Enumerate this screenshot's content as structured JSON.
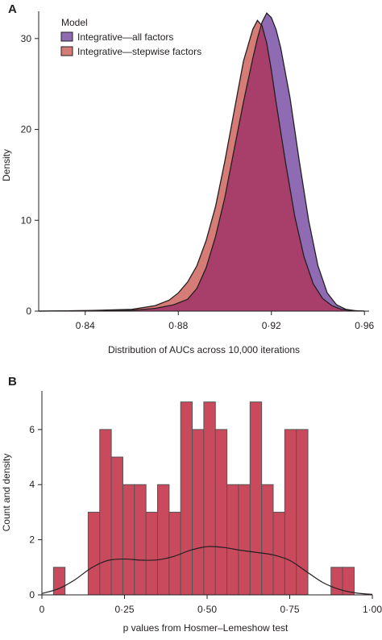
{
  "figure": {
    "panels": [
      "A",
      "B"
    ]
  },
  "colors": {
    "all_factors": "#8e6bb3",
    "stepwise_factors": "#d67c77",
    "overlap": "#a83e6a",
    "hist_fill": "#c9495d",
    "hist_stroke": "#555555",
    "line": "#231f20"
  },
  "chart_data": [
    {
      "type": "area",
      "panel": "A",
      "xlabel": "Distribution of AUCs across 10,000 iterations",
      "ylabel": "Density",
      "xlim": [
        0.82,
        0.962
      ],
      "ylim": [
        0,
        33
      ],
      "xticks": [
        0.84,
        0.88,
        0.92,
        0.96
      ],
      "xtick_labels": [
        "0·84",
        "0·88",
        "0·92",
        "0·96"
      ],
      "yticks": [
        0,
        10,
        20,
        30
      ],
      "ytick_labels": [
        "0",
        "10",
        "20",
        "30"
      ],
      "legend": {
        "title": "Model",
        "placement": "top-left"
      },
      "series": [
        {
          "name": "Integrative—all factors",
          "color": "#8e6bb3",
          "x": [
            0.82,
            0.84,
            0.86,
            0.87,
            0.878,
            0.884,
            0.888,
            0.892,
            0.896,
            0.9,
            0.904,
            0.908,
            0.912,
            0.914,
            0.916,
            0.918,
            0.92,
            0.922,
            0.924,
            0.928,
            0.932,
            0.936,
            0.94,
            0.944,
            0.948,
            0.952,
            0.956,
            0.96
          ],
          "y": [
            0,
            0.05,
            0.1,
            0.3,
            0.7,
            1.3,
            2.5,
            4.8,
            8.2,
            12.5,
            17.8,
            23.0,
            27.8,
            30.0,
            31.8,
            32.8,
            32.3,
            31.0,
            29.0,
            23.5,
            16.5,
            10.0,
            5.0,
            2.0,
            0.7,
            0.2,
            0.05,
            0
          ]
        },
        {
          "name": "Integrative—stepwise factors",
          "color": "#d67c77",
          "x": [
            0.82,
            0.84,
            0.86,
            0.87,
            0.876,
            0.88,
            0.884,
            0.888,
            0.892,
            0.896,
            0.9,
            0.904,
            0.908,
            0.912,
            0.914,
            0.916,
            0.918,
            0.92,
            0.922,
            0.926,
            0.93,
            0.934,
            0.938,
            0.942,
            0.946,
            0.95,
            0.955,
            0.96
          ],
          "y": [
            0,
            0.05,
            0.2,
            0.6,
            1.2,
            2.0,
            3.2,
            5.0,
            7.8,
            11.5,
            16.5,
            22.0,
            27.5,
            31.0,
            32.0,
            31.4,
            29.5,
            26.5,
            23.0,
            16.5,
            10.5,
            6.0,
            3.0,
            1.4,
            0.6,
            0.2,
            0.05,
            0
          ]
        }
      ]
    },
    {
      "type": "bar",
      "panel": "B",
      "xlabel": "p values from Hosmer–Lemeshow test",
      "ylabel": "Count and density",
      "xlim": [
        0,
        1.0
      ],
      "ylim": [
        0,
        7.4
      ],
      "xticks": [
        0,
        0.25,
        0.5,
        0.75,
        1.0
      ],
      "xtick_labels": [
        "0",
        "0·25",
        "0·50",
        "0·75",
        "1·00"
      ],
      "yticks": [
        0,
        2,
        4,
        6
      ],
      "ytick_labels": [
        "0",
        "2",
        "4",
        "6"
      ],
      "bin_width": 0.035,
      "bin_starts": [
        0.035,
        0.07,
        0.105,
        0.14,
        0.175,
        0.21,
        0.245,
        0.28,
        0.315,
        0.35,
        0.385,
        0.42,
        0.455,
        0.49,
        0.525,
        0.56,
        0.595,
        0.63,
        0.665,
        0.7,
        0.735,
        0.77,
        0.805,
        0.84,
        0.875,
        0.91
      ],
      "counts": [
        1,
        0,
        0,
        3,
        6,
        5,
        4,
        4,
        3,
        4,
        3,
        7,
        6,
        7,
        6,
        4,
        4,
        7,
        4,
        3,
        6,
        6,
        0,
        0,
        1,
        1
      ],
      "density": {
        "x": [
          0.0,
          0.05,
          0.1,
          0.15,
          0.2,
          0.25,
          0.3,
          0.35,
          0.4,
          0.45,
          0.5,
          0.55,
          0.6,
          0.65,
          0.7,
          0.75,
          0.8,
          0.85,
          0.9,
          0.95,
          1.0
        ],
        "y": [
          0.05,
          0.22,
          0.55,
          0.98,
          1.25,
          1.3,
          1.26,
          1.27,
          1.4,
          1.62,
          1.75,
          1.72,
          1.62,
          1.54,
          1.45,
          1.25,
          0.85,
          0.45,
          0.2,
          0.07,
          0.02
        ]
      }
    }
  ]
}
